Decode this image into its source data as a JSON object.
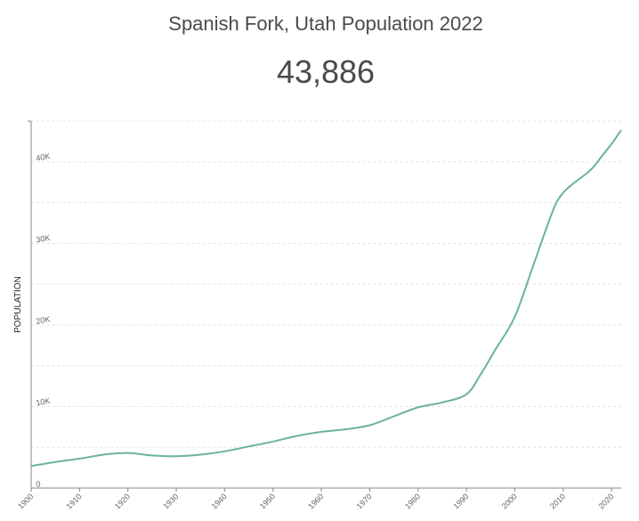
{
  "header": {
    "title": "Spanish Fork, Utah Population 2022",
    "current_value": "43,886"
  },
  "colors": {
    "line": "#6bb39a",
    "grid": "#e3e3e3",
    "axis": "#888888"
  },
  "chart_data": {
    "type": "line",
    "title": "Spanish Fork, Utah Population 2022",
    "xlabel": "",
    "ylabel": "POPULATION",
    "xlim": [
      1900,
      2022
    ],
    "ylim": [
      0,
      45000
    ],
    "grid": true,
    "x_ticks": [
      1900,
      1910,
      1920,
      1930,
      1940,
      1950,
      1960,
      1970,
      1980,
      1990,
      2000,
      2010,
      2020
    ],
    "x_tick_labels": [
      "1900",
      "1910",
      "1920",
      "1930",
      "1940",
      "1950",
      "1960",
      "1970",
      "1980",
      "1990",
      "2000",
      "2010",
      "2020"
    ],
    "y_ticks": [
      0,
      10000,
      20000,
      30000,
      40000
    ],
    "y_tick_labels": [
      "0",
      "10K",
      "20K",
      "30K",
      "40K"
    ],
    "series": [
      {
        "x": [
          1900,
          1905,
          1910,
          1915,
          1920,
          1925,
          1930,
          1935,
          1940,
          1945,
          1950,
          1955,
          1960,
          1965,
          1970,
          1975,
          1980,
          1985,
          1990,
          1993,
          1996,
          2000,
          2004,
          2008,
          2010,
          2012,
          2014,
          2016,
          2018,
          2020,
          2022
        ],
        "y": [
          2700,
          3200,
          3600,
          4100,
          4300,
          4000,
          3900,
          4100,
          4500,
          5100,
          5700,
          6400,
          6900,
          7200,
          7700,
          8800,
          9900,
          10500,
          11500,
          14000,
          17000,
          21000,
          27600,
          34200,
          36200,
          37300,
          38200,
          39200,
          40700,
          42200,
          43886
        ]
      }
    ]
  }
}
